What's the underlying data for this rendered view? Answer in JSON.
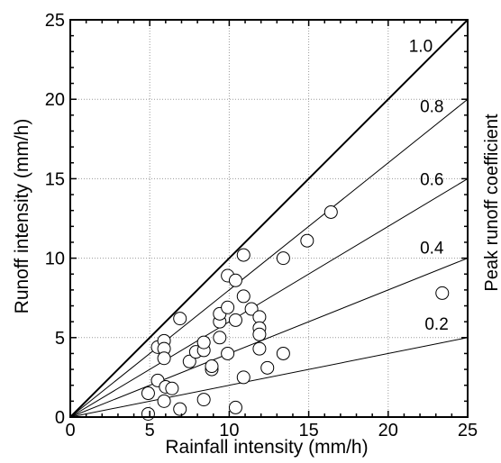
{
  "chart_data": {
    "type": "scatter",
    "xlabel": "Rainfall intensity (mm/h)",
    "ylabel": "Runoff intensity (mm/h)",
    "right_label": "Peak runoff coefficient",
    "xlim": [
      0,
      25
    ],
    "ylim": [
      0,
      25
    ],
    "xticks": [
      0,
      5,
      10,
      15,
      20,
      25
    ],
    "yticks": [
      0,
      5,
      10,
      15,
      20,
      25
    ],
    "grid": true,
    "reference_lines": [
      {
        "slope": 1.0,
        "label": "1.0"
      },
      {
        "slope": 0.8,
        "label": "0.8"
      },
      {
        "slope": 0.6,
        "label": "0.6"
      },
      {
        "slope": 0.4,
        "label": "0.4"
      },
      {
        "slope": 0.2,
        "label": "0.2"
      }
    ],
    "points": [
      {
        "x": 4.9,
        "y": 0.2
      },
      {
        "x": 4.9,
        "y": 1.5
      },
      {
        "x": 5.5,
        "y": 2.3
      },
      {
        "x": 5.5,
        "y": 4.4
      },
      {
        "x": 5.9,
        "y": 4.8
      },
      {
        "x": 5.9,
        "y": 4.3
      },
      {
        "x": 5.9,
        "y": 3.7
      },
      {
        "x": 5.9,
        "y": 1.0
      },
      {
        "x": 6.0,
        "y": 1.9
      },
      {
        "x": 6.4,
        "y": 1.8
      },
      {
        "x": 6.9,
        "y": 6.2
      },
      {
        "x": 6.9,
        "y": 0.5
      },
      {
        "x": 7.5,
        "y": 3.5
      },
      {
        "x": 7.9,
        "y": 4.1
      },
      {
        "x": 8.4,
        "y": 4.2
      },
      {
        "x": 8.4,
        "y": 4.7
      },
      {
        "x": 8.4,
        "y": 1.1
      },
      {
        "x": 8.9,
        "y": 3.0
      },
      {
        "x": 8.9,
        "y": 3.2
      },
      {
        "x": 9.4,
        "y": 5.0
      },
      {
        "x": 9.4,
        "y": 6.0
      },
      {
        "x": 9.4,
        "y": 6.5
      },
      {
        "x": 9.9,
        "y": 8.9
      },
      {
        "x": 9.9,
        "y": 6.9
      },
      {
        "x": 9.9,
        "y": 4.0
      },
      {
        "x": 10.4,
        "y": 8.6
      },
      {
        "x": 10.4,
        "y": 6.1
      },
      {
        "x": 10.4,
        "y": 0.6
      },
      {
        "x": 10.9,
        "y": 10.2
      },
      {
        "x": 10.9,
        "y": 7.6
      },
      {
        "x": 10.9,
        "y": 2.5
      },
      {
        "x": 11.4,
        "y": 6.8
      },
      {
        "x": 11.9,
        "y": 6.3
      },
      {
        "x": 11.9,
        "y": 5.6
      },
      {
        "x": 11.9,
        "y": 5.2
      },
      {
        "x": 11.9,
        "y": 4.3
      },
      {
        "x": 12.4,
        "y": 3.1
      },
      {
        "x": 13.4,
        "y": 10.0
      },
      {
        "x": 13.4,
        "y": 4.0
      },
      {
        "x": 14.9,
        "y": 11.1
      },
      {
        "x": 16.4,
        "y": 12.9
      },
      {
        "x": 23.4,
        "y": 7.8
      }
    ]
  }
}
